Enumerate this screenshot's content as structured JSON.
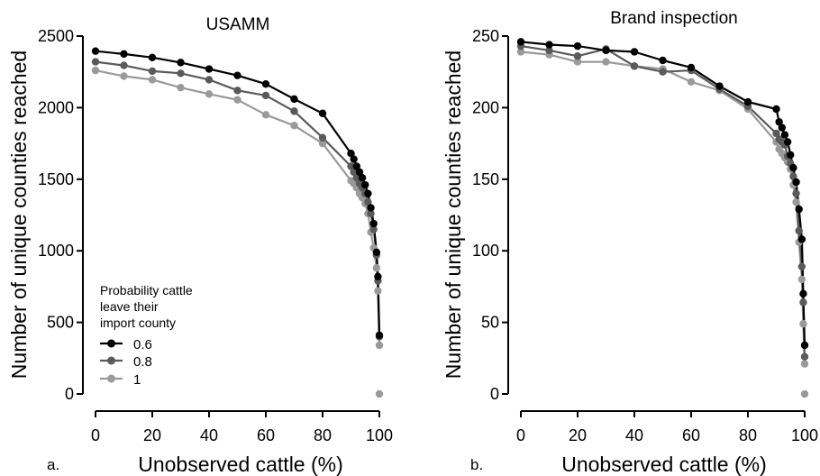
{
  "colors": {
    "series_0_6": "#000000",
    "series_0_8": "#5a5a5a",
    "series_1": "#9a9a9a",
    "axis": "#000000",
    "background": "#ffffff"
  },
  "chart_data": [
    {
      "type": "line",
      "panel": "a.",
      "title": "USAMM",
      "xlabel": "Unobserved cattle (%)",
      "ylabel": "Number of unique counties reached",
      "xlim": [
        0,
        100
      ],
      "ylim": [
        0,
        2500
      ],
      "xticks": [
        0,
        20,
        40,
        60,
        80,
        100
      ],
      "yticks": [
        0,
        500,
        1000,
        1500,
        2000,
        2500
      ],
      "grid": false,
      "legend": {
        "position": "bottom-left",
        "title_lines": [
          "Probability cattle",
          "leave their",
          "import county"
        ],
        "entries": [
          "0.6",
          "0.8",
          "1"
        ]
      },
      "series": [
        {
          "name": "0.6",
          "x": [
            0,
            10,
            20,
            30,
            40,
            50,
            60,
            70,
            80,
            90,
            91,
            92,
            93,
            94,
            95,
            96,
            97,
            98,
            99,
            99.5,
            100
          ],
          "y": [
            2395,
            2375,
            2350,
            2315,
            2270,
            2225,
            2165,
            2060,
            1960,
            1680,
            1640,
            1590,
            1550,
            1510,
            1460,
            1400,
            1300,
            1190,
            990,
            820,
            410
          ]
        },
        {
          "name": "0.8",
          "x": [
            0,
            10,
            20,
            30,
            40,
            50,
            60,
            70,
            80,
            90,
            91,
            92,
            93,
            94,
            95,
            96,
            97,
            98,
            99,
            99.5,
            100
          ],
          "y": [
            2320,
            2295,
            2255,
            2240,
            2195,
            2120,
            2085,
            1975,
            1790,
            1590,
            1550,
            1510,
            1470,
            1440,
            1400,
            1340,
            1260,
            1150,
            970,
            790,
            400
          ]
        },
        {
          "name": "1",
          "x": [
            0,
            10,
            20,
            30,
            40,
            50,
            60,
            70,
            80,
            90,
            91,
            92,
            93,
            94,
            95,
            96,
            97,
            98,
            99,
            99.5,
            100
          ],
          "y": [
            2260,
            2220,
            2195,
            2140,
            2095,
            2055,
            1950,
            1875,
            1750,
            1490,
            1470,
            1440,
            1400,
            1370,
            1330,
            1260,
            1130,
            1020,
            880,
            720,
            340
          ]
        }
      ],
      "extra_points": [
        {
          "x": 100,
          "y": 0
        }
      ]
    },
    {
      "type": "line",
      "panel": "b.",
      "title": "Brand inspection",
      "xlabel": "Unobserved cattle (%)",
      "ylabel": "Number of unique counties reached",
      "xlim": [
        0,
        100
      ],
      "ylim": [
        0,
        250
      ],
      "xticks": [
        0,
        20,
        40,
        60,
        80,
        100
      ],
      "yticks": [
        0,
        50,
        100,
        150,
        200,
        250
      ],
      "grid": false,
      "series": [
        {
          "name": "0.6",
          "x": [
            0,
            10,
            20,
            30,
            40,
            50,
            60,
            70,
            80,
            90,
            91,
            92,
            93,
            94,
            95,
            96,
            97,
            98,
            99,
            99.5,
            100
          ],
          "y": [
            246,
            244,
            243,
            240,
            239,
            233,
            228,
            215,
            204,
            199,
            190,
            186,
            181,
            176,
            167,
            158,
            148,
            129,
            108,
            70,
            34
          ]
        },
        {
          "name": "0.8",
          "x": [
            0,
            10,
            20,
            30,
            40,
            50,
            60,
            70,
            80,
            90,
            91,
            92,
            93,
            94,
            95,
            96,
            97,
            98,
            99,
            99.5,
            100
          ],
          "y": [
            243,
            240,
            236,
            241,
            229,
            225,
            226,
            213,
            201,
            182,
            178,
            176,
            174,
            166,
            161,
            152,
            140,
            114,
            89,
            64,
            26
          ]
        },
        {
          "name": "1",
          "x": [
            0,
            10,
            20,
            30,
            40,
            50,
            60,
            70,
            80,
            90,
            91,
            92,
            93,
            94,
            95,
            96,
            97,
            98,
            99,
            99.5,
            100
          ],
          "y": [
            239,
            237,
            232,
            232,
            229,
            227,
            218,
            212,
            199,
            176,
            171,
            168,
            165,
            162,
            157,
            146,
            134,
            106,
            80,
            49,
            21
          ]
        }
      ],
      "extra_points": [
        {
          "x": 100,
          "y": 0
        }
      ]
    }
  ]
}
